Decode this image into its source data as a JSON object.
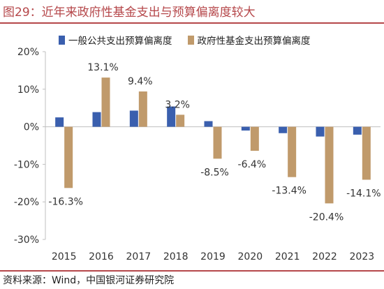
{
  "figure": {
    "title": "图29：近年来政府性基金支出与预算偏离度较大",
    "source": "资料来源：Wind，中国银河证券研究院"
  },
  "chart_data": {
    "type": "bar",
    "categories": [
      "2015",
      "2016",
      "2017",
      "2018",
      "2019",
      "2020",
      "2021",
      "2022",
      "2023"
    ],
    "series": [
      {
        "name": "一般公共支出预算偏离度",
        "color": "#3a5fae",
        "values": [
          2.5,
          3.9,
          4.3,
          5.4,
          1.5,
          -1.0,
          -1.7,
          -2.6,
          -2.1
        ]
      },
      {
        "name": "政府性基金支出预算偏离度",
        "color": "#c09a6b",
        "values": [
          -16.3,
          13.1,
          9.4,
          3.2,
          -8.5,
          -6.4,
          -13.4,
          -20.4,
          -14.1
        ],
        "data_labels": [
          "-16.3%",
          "13.1%",
          "9.4%",
          "3.2%",
          "-8.5%",
          "-6.4%",
          "-13.4%",
          "-20.4%",
          "-14.1%"
        ]
      }
    ],
    "ylim": [
      -30,
      20
    ],
    "yticks": [
      20,
      10,
      0,
      -10,
      -20,
      -30
    ],
    "ytick_labels": [
      "20%",
      "10%",
      "0%",
      "-10%",
      "-20%",
      "-30%"
    ],
    "grid": false,
    "legend_position": "top"
  }
}
